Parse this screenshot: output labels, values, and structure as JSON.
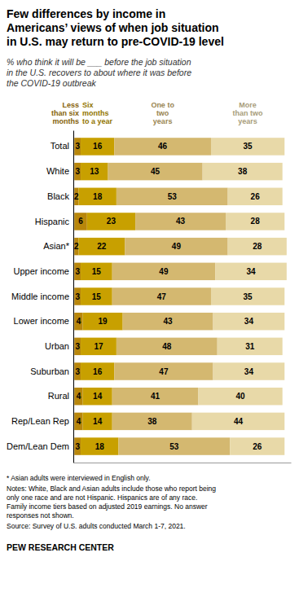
{
  "chart_data": {
    "type": "bar",
    "orientation": "horizontal",
    "stacked": true,
    "data_labels": true,
    "legend": "top",
    "tick_labels": "y",
    "title": "Few differences by income in\nAmericans’ views of when job situation\nin U.S. may return to pre-COVID-19 level",
    "subtitle": "% who think it will be ___ before the job situation\nin the U.S. recovers to about where it was before\nthe COVID-19 outbreak",
    "categories": [
      "Total",
      "White",
      "Black",
      "Hispanic",
      "Asian*",
      "Upper income",
      "Middle income",
      "Lower income",
      "Urban",
      "Suburban",
      "Rural",
      "Rep/Lean Rep",
      "Dem/Lean Dem"
    ],
    "series": [
      {
        "name": "Less\nthan six\nmonths",
        "color": "#b8860b",
        "values": [
          3,
          3,
          2,
          6,
          2,
          3,
          3,
          4,
          3,
          3,
          4,
          4,
          3
        ]
      },
      {
        "name": "Six\nmonths\nto a year",
        "color": "#c8a000",
        "values": [
          16,
          13,
          18,
          23,
          22,
          15,
          15,
          19,
          17,
          16,
          14,
          14,
          18
        ]
      },
      {
        "name": "One to\ntwo\nyears",
        "color": "#d4b870",
        "values": [
          46,
          45,
          53,
          43,
          49,
          49,
          47,
          43,
          48,
          47,
          41,
          38,
          53
        ]
      },
      {
        "name": "More\nthan two\nyears",
        "color": "#e8d9a8",
        "values": [
          35,
          38,
          26,
          28,
          28,
          34,
          35,
          34,
          31,
          34,
          40,
          44,
          26
        ]
      }
    ],
    "xlim": [
      -0.5,
      103
    ],
    "annotations": [
      "* Asian adults were interviewed in English only.",
      "Notes: White, Black and Asian adults include those who report being\nonly one race and are not Hispanic. Hispanics are of any race.\nFamily income tiers based on adjusted 2019 earnings. No answer\nresponses not shown.",
      "Source: Survey of U.S. adults conducted March 1-7, 2021.",
      "PEW RESEARCH CENTER"
    ]
  }
}
